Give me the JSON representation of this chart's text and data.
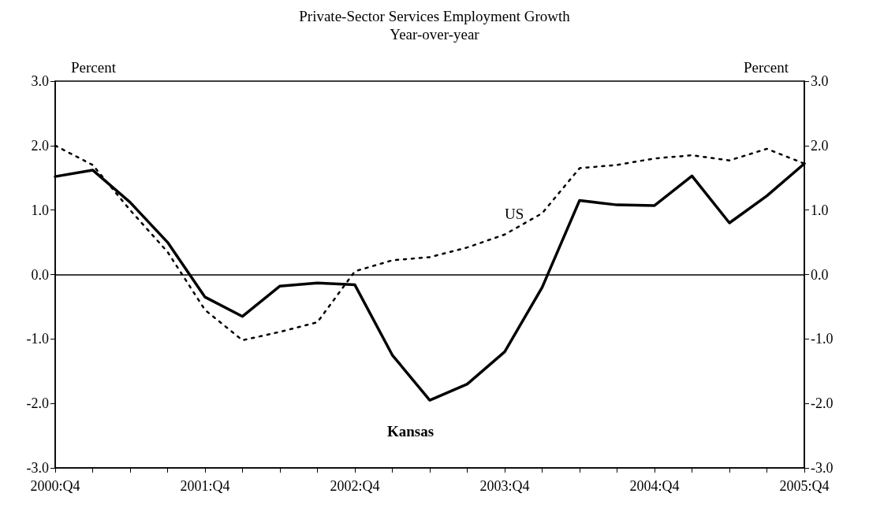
{
  "chart_data": {
    "type": "line",
    "title": "Private-Sector Services Employment Growth",
    "subtitle": "Year-over-year",
    "ylabel": "Percent",
    "y2label": "Percent",
    "categories": [
      "2000:Q4",
      null,
      null,
      null,
      "2001:Q4",
      null,
      null,
      null,
      "2002:Q4",
      null,
      null,
      null,
      "2003:Q4",
      null,
      null,
      null,
      "2004:Q4",
      null,
      null,
      null,
      "2005:Q4"
    ],
    "series": [
      {
        "name": "US",
        "color": "#000000",
        "line_style": "dotted",
        "values": [
          2.0,
          1.7,
          1.0,
          0.35,
          -0.55,
          -1.02,
          -0.89,
          -0.74,
          0.05,
          0.22,
          0.27,
          0.42,
          0.62,
          0.95,
          1.65,
          1.7,
          1.8,
          1.85,
          1.77,
          1.95,
          1.72
        ]
      },
      {
        "name": "Kansas",
        "color": "#000000",
        "line_style": "solid",
        "values": [
          1.52,
          1.62,
          1.12,
          0.5,
          -0.35,
          -0.65,
          -0.18,
          -0.13,
          -0.16,
          -1.25,
          -1.95,
          -1.7,
          -1.2,
          -0.2,
          1.15,
          1.08,
          1.07,
          1.53,
          0.8,
          1.22,
          1.72
        ]
      }
    ],
    "ylim": [
      -3,
      3
    ],
    "yticks": [
      {
        "value": -3,
        "label": "-3.0"
      },
      {
        "value": -2,
        "label": "-2.0"
      },
      {
        "value": -1,
        "label": "-1.0"
      },
      {
        "value": 0,
        "label": "0.0"
      },
      {
        "value": 1,
        "label": "1.0"
      },
      {
        "value": 2,
        "label": "2.0"
      },
      {
        "value": 3,
        "label": "3.0"
      }
    ],
    "y2lim": [
      -3,
      3
    ],
    "y2ticks": [
      {
        "value": -3,
        "label": "-3.0"
      },
      {
        "value": -2,
        "label": "-2.0"
      },
      {
        "value": -1,
        "label": "-1.0"
      },
      {
        "value": 0,
        "label": "0.0"
      },
      {
        "value": 1,
        "label": "1.0"
      },
      {
        "value": 2,
        "label": "2.0"
      },
      {
        "value": 3,
        "label": "3.0"
      }
    ],
    "ref_lines": [
      {
        "axis": "y",
        "value": 0,
        "color": "#000000",
        "line_style": "solid"
      }
    ],
    "grid": false,
    "legend": false,
    "marker": "none"
  }
}
